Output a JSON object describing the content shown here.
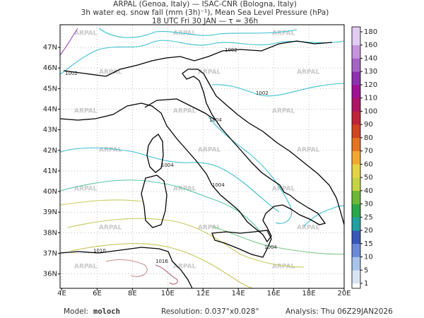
{
  "header": {
    "lines": [
      "ARPAL (Genoa, Italy)  —  ISAC-CNR (Bologna, Italy)",
      "3h water eq. snow fall (mm (3h)⁻¹), Mean Sea Level Pressure (hPa)",
      "18 UTC Fri 30 JAN  —  τ = 36h"
    ]
  },
  "map": {
    "lonlim": [
      3.9,
      20
    ],
    "latlim": [
      35.3,
      48.1
    ],
    "lon_ticks": [
      {
        "value": 4,
        "label": "4E"
      },
      {
        "value": 6,
        "label": "6E"
      },
      {
        "value": 8,
        "label": "8E"
      },
      {
        "value": 10,
        "label": "10E"
      },
      {
        "value": 12,
        "label": "12E"
      },
      {
        "value": 14,
        "label": "14E"
      },
      {
        "value": 16,
        "label": "16E"
      },
      {
        "value": 18,
        "label": "18E"
      },
      {
        "value": 20,
        "label": "20E"
      }
    ],
    "lat_ticks": [
      {
        "value": 36,
        "label": "36N"
      },
      {
        "value": 37,
        "label": "37N"
      },
      {
        "value": 38,
        "label": "38N"
      },
      {
        "value": 39,
        "label": "39N"
      },
      {
        "value": 40,
        "label": "40N"
      },
      {
        "value": 41,
        "label": "41N"
      },
      {
        "value": 42,
        "label": "42N"
      },
      {
        "value": 43,
        "label": "43N"
      },
      {
        "value": 44,
        "label": "44N"
      },
      {
        "value": 45,
        "label": "45N"
      },
      {
        "value": 46,
        "label": "46N"
      },
      {
        "value": 47,
        "label": "47N"
      }
    ],
    "grid": true,
    "watermark": "ARPAL",
    "isobar_labels": [
      "1002",
      "1002",
      "1002",
      "1004",
      "1004",
      "1004",
      "1004",
      "1010",
      "1016"
    ]
  },
  "colorbar": {
    "ticks": [
      1,
      5,
      10,
      15,
      20,
      25,
      30,
      40,
      50,
      60,
      70,
      80,
      90,
      100,
      110,
      120,
      130,
      140,
      160,
      180
    ],
    "colors": [
      "#d8e4f2",
      "#a8c4ea",
      "#6a8ad8",
      "#3858b8",
      "#20a0a0",
      "#28a848",
      "#6cb834",
      "#c4d444",
      "#e4d444",
      "#f0a830",
      "#e47420",
      "#d04420",
      "#c02438",
      "#b01464",
      "#a01094",
      "#8c30b0",
      "#a464c4",
      "#c494dc",
      "#e2ccf2"
    ]
  },
  "footer": {
    "model_label": "Model:",
    "model": "moloch",
    "resolution": "Resolution: 0.037°x0.028°",
    "analysis": "Analysis: Thu 06Z29JAN2026"
  }
}
